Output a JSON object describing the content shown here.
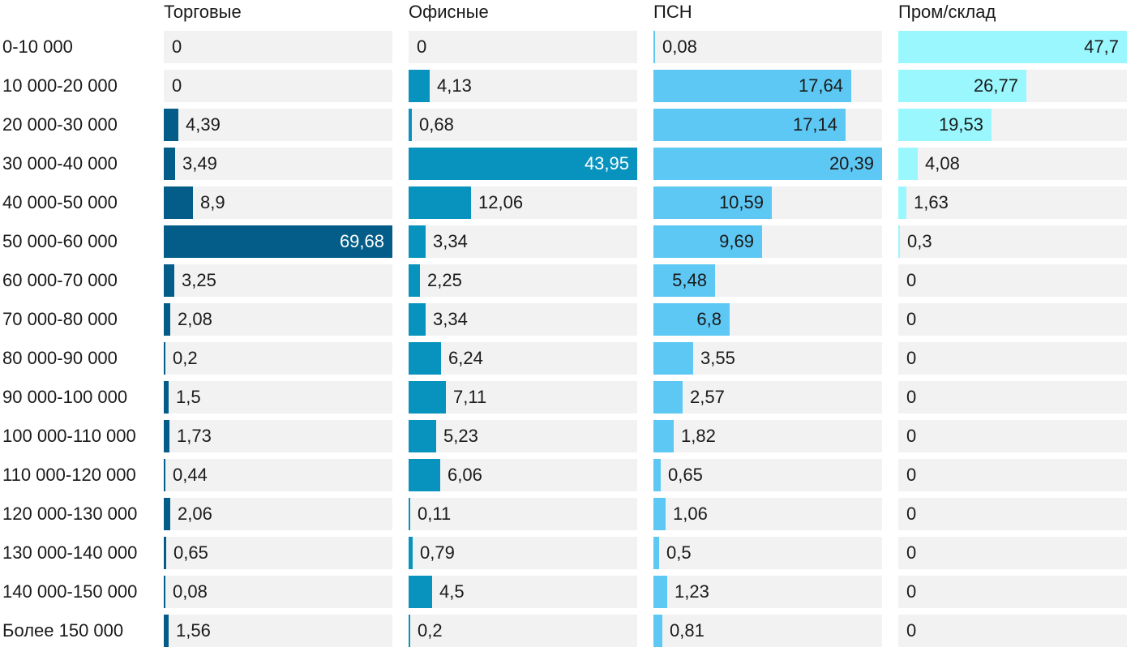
{
  "chart_data": {
    "type": "bar",
    "orientation": "horizontal",
    "layout": "small-multiples",
    "categories": [
      "0-10 000",
      "10 000-20 000",
      "20 000-30 000",
      "30 000-40 000",
      "40 000-50 000",
      "50 000-60 000",
      "60 000-70 000",
      "70 000-80 000",
      "80 000-90 000",
      "90 000-100 000",
      "100 000-110 000",
      "110 000-120 000",
      "120 000-130 000",
      "130 000-140 000",
      "140 000-150 000",
      "Более 150 000"
    ],
    "series": [
      {
        "name": "Торговые",
        "color": "#035d88",
        "values": [
          0,
          0,
          4.39,
          3.49,
          8.9,
          69.68,
          3.25,
          2.08,
          0.2,
          1.5,
          1.73,
          0.44,
          2.06,
          0.65,
          0.08,
          1.56
        ],
        "labels": [
          "0",
          "0",
          "4,39",
          "3,49",
          "8,9",
          "69,68",
          "3,25",
          "2,08",
          "0,2",
          "1,5",
          "1,73",
          "0,44",
          "2,06",
          "0,65",
          "0,08",
          "1,56"
        ]
      },
      {
        "name": "Офисные",
        "color": "#0793be",
        "values": [
          0,
          4.13,
          0.68,
          43.95,
          12.06,
          3.34,
          2.25,
          3.34,
          6.24,
          7.11,
          5.23,
          6.06,
          0.11,
          0.79,
          4.5,
          0.2
        ],
        "labels": [
          "0",
          "4,13",
          "0,68",
          "43,95",
          "12,06",
          "3,34",
          "2,25",
          "3,34",
          "6,24",
          "7,11",
          "5,23",
          "6,06",
          "0,11",
          "0,79",
          "4,5",
          "0,2"
        ]
      },
      {
        "name": "ПСН",
        "color": "#5ec8f4",
        "values": [
          0.08,
          17.64,
          17.14,
          20.39,
          10.59,
          9.69,
          5.48,
          6.8,
          3.55,
          2.57,
          1.82,
          0.65,
          1.06,
          0.5,
          1.23,
          0.81
        ],
        "labels": [
          "0,08",
          "17,64",
          "17,14",
          "20,39",
          "10,59",
          "9,69",
          "5,48",
          "6,8",
          "3,55",
          "2,57",
          "1,82",
          "0,65",
          "1,06",
          "0,5",
          "1,23",
          "0,81"
        ]
      },
      {
        "name": "Пром/склад",
        "color": "#9af7fe",
        "values": [
          47.7,
          26.77,
          19.53,
          4.08,
          1.63,
          0.3,
          0,
          0,
          0,
          0,
          0,
          0,
          0,
          0,
          0,
          0
        ],
        "labels": [
          "47,7",
          "26,77",
          "19,53",
          "4,08",
          "1,63",
          "0,3",
          "0",
          "0",
          "0",
          "0",
          "0",
          "0",
          "0",
          "0",
          "0",
          "0"
        ]
      }
    ],
    "title": "",
    "xlabel": "",
    "ylabel": ""
  },
  "colors": {
    "track": "#f2f2f2",
    "text_dark": "#1a1a1a",
    "text_light": "#ffffff"
  }
}
